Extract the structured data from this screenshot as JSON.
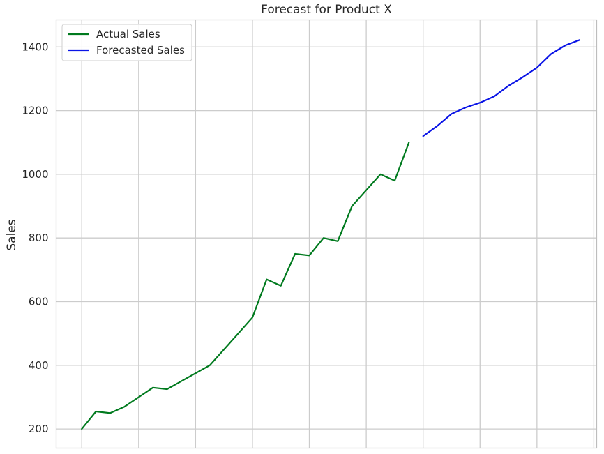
{
  "chart_data": {
    "type": "line",
    "title": "Forecast for Product X",
    "xlabel": "",
    "ylabel": "Sales",
    "ylim": [
      140,
      1485
    ],
    "yticks": [
      200,
      400,
      600,
      800,
      1000,
      1200,
      1400
    ],
    "xlim": [
      -1.8,
      36.2
    ],
    "xgrid": [
      0,
      4,
      8,
      12,
      16,
      20,
      24,
      28,
      32,
      36
    ],
    "grid": true,
    "legend_position": "top-left",
    "series": [
      {
        "name": "Actual Sales",
        "color": "#007a1e",
        "x": [
          0,
          1,
          2,
          3,
          4,
          5,
          6,
          7,
          8,
          9,
          10,
          11,
          12,
          13,
          14,
          15,
          16,
          17,
          18,
          19,
          20,
          21,
          22,
          23
        ],
        "values": [
          200,
          255,
          250,
          270,
          300,
          330,
          325,
          350,
          375,
          400,
          450,
          500,
          550,
          670,
          650,
          750,
          745,
          800,
          790,
          900,
          950,
          1000,
          980,
          1100
        ]
      },
      {
        "name": "Forecasted Sales",
        "color": "#0a14e6",
        "x": [
          24,
          25,
          26,
          27,
          28,
          29,
          30,
          31,
          32,
          33,
          34,
          35
        ],
        "values": [
          1120,
          1152,
          1190,
          1210,
          1225,
          1245,
          1278,
          1305,
          1335,
          1378,
          1405,
          1422
        ]
      }
    ]
  }
}
